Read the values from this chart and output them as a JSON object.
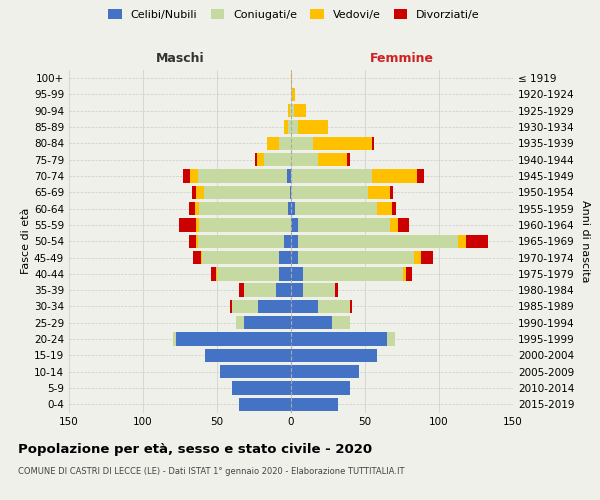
{
  "age_groups": [
    "0-4",
    "5-9",
    "10-14",
    "15-19",
    "20-24",
    "25-29",
    "30-34",
    "35-39",
    "40-44",
    "45-49",
    "50-54",
    "55-59",
    "60-64",
    "65-69",
    "70-74",
    "75-79",
    "80-84",
    "85-89",
    "90-94",
    "95-99",
    "100+"
  ],
  "birth_years": [
    "2015-2019",
    "2010-2014",
    "2005-2009",
    "2000-2004",
    "1995-1999",
    "1990-1994",
    "1985-1989",
    "1980-1984",
    "1975-1979",
    "1970-1974",
    "1965-1969",
    "1960-1964",
    "1955-1959",
    "1950-1954",
    "1945-1949",
    "1940-1944",
    "1935-1939",
    "1930-1934",
    "1925-1929",
    "1920-1924",
    "≤ 1919"
  ],
  "male_celibi": [
    35,
    40,
    48,
    58,
    78,
    32,
    22,
    10,
    8,
    8,
    5,
    0,
    2,
    1,
    3,
    0,
    0,
    0,
    0,
    0,
    0
  ],
  "male_coniugati": [
    0,
    0,
    0,
    0,
    2,
    5,
    18,
    22,
    42,
    52,
    58,
    62,
    60,
    58,
    60,
    18,
    8,
    2,
    1,
    0,
    0
  ],
  "male_vedovi": [
    0,
    0,
    0,
    0,
    0,
    0,
    0,
    0,
    1,
    1,
    1,
    2,
    3,
    5,
    5,
    5,
    8,
    3,
    1,
    0,
    0
  ],
  "male_divorziati": [
    0,
    0,
    0,
    0,
    0,
    0,
    1,
    3,
    3,
    5,
    5,
    12,
    4,
    3,
    5,
    1,
    0,
    0,
    0,
    0,
    0
  ],
  "female_celibi": [
    32,
    40,
    46,
    58,
    65,
    28,
    18,
    8,
    8,
    5,
    5,
    5,
    3,
    0,
    0,
    0,
    0,
    0,
    0,
    0,
    0
  ],
  "female_coniugati": [
    0,
    0,
    0,
    0,
    5,
    12,
    22,
    22,
    68,
    78,
    108,
    62,
    55,
    52,
    55,
    18,
    15,
    5,
    2,
    1,
    0
  ],
  "female_vedovi": [
    0,
    0,
    0,
    0,
    0,
    0,
    0,
    0,
    2,
    5,
    5,
    5,
    10,
    15,
    30,
    20,
    40,
    20,
    8,
    2,
    1
  ],
  "female_divorziati": [
    0,
    0,
    0,
    0,
    0,
    0,
    1,
    2,
    4,
    8,
    15,
    8,
    3,
    2,
    5,
    2,
    1,
    0,
    0,
    0,
    0
  ],
  "colors": {
    "celibi": "#4472c4",
    "coniugati": "#c5d9a0",
    "vedovi": "#ffc000",
    "divorziati": "#cc0000"
  },
  "title": "Popolazione per età, sesso e stato civile - 2020",
  "subtitle": "COMUNE DI CASTRI DI LECCE (LE) - Dati ISTAT 1° gennaio 2020 - Elaborazione TUTTITALIA.IT",
  "xlabel_left": "Maschi",
  "xlabel_right": "Femmine",
  "ylabel_left": "Fasce di età",
  "ylabel_right": "Anni di nascita",
  "xlim": 150,
  "bg_color": "#f0f0eb",
  "grid_color": "#cccccc"
}
